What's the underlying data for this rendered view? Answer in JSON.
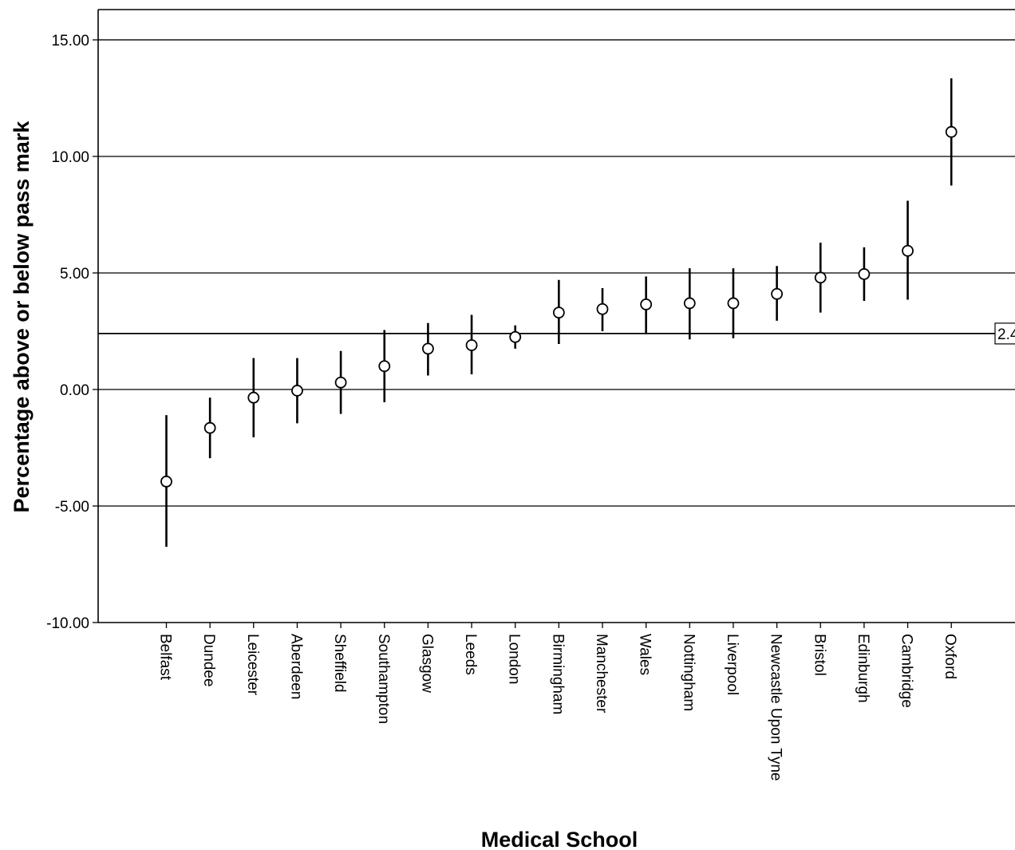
{
  "chart_data": {
    "type": "scatter",
    "subtype": "error-bar",
    "title": "",
    "xlabel": "Medical School",
    "ylabel": "Percentage above or below pass mark",
    "ylim": [
      -10,
      16.3
    ],
    "yticks": [
      -10,
      -5,
      0,
      5,
      10,
      15
    ],
    "ytick_labels": [
      "-10.00",
      "-5.00",
      "0.00",
      "5.00",
      "10.00",
      "15.00"
    ],
    "grid": "horizontal",
    "marker": "open-circle",
    "categories": [
      "Belfast",
      "Dundee",
      "Leicester",
      "Aberdeen",
      "Sheffield",
      "Southampton",
      "Glasgow",
      "Leeds",
      "London",
      "Birmingham",
      "Manchester",
      "Wales",
      "Nottingham",
      "Liverpool",
      "Newcastle Upon Tyne",
      "Bristol",
      "Edinburgh",
      "Cambridge",
      "Oxford"
    ],
    "means": [
      -3.95,
      -1.65,
      -0.35,
      -0.05,
      0.3,
      1.0,
      1.75,
      1.9,
      2.25,
      3.3,
      3.45,
      3.65,
      3.7,
      3.7,
      4.1,
      4.8,
      4.95,
      5.95,
      11.05
    ],
    "lower": [
      -6.75,
      -2.95,
      -2.05,
      -1.45,
      -1.05,
      -0.55,
      0.6,
      0.65,
      1.75,
      1.95,
      2.5,
      2.4,
      2.15,
      2.2,
      2.95,
      3.3,
      3.8,
      3.85,
      8.75
    ],
    "upper": [
      -1.1,
      -0.35,
      1.35,
      1.35,
      1.65,
      2.55,
      2.85,
      3.2,
      2.75,
      4.7,
      4.35,
      4.85,
      5.2,
      5.2,
      5.3,
      6.3,
      6.1,
      8.1,
      13.35
    ],
    "reference_line": {
      "value": 2.4,
      "label": "2.4"
    }
  }
}
